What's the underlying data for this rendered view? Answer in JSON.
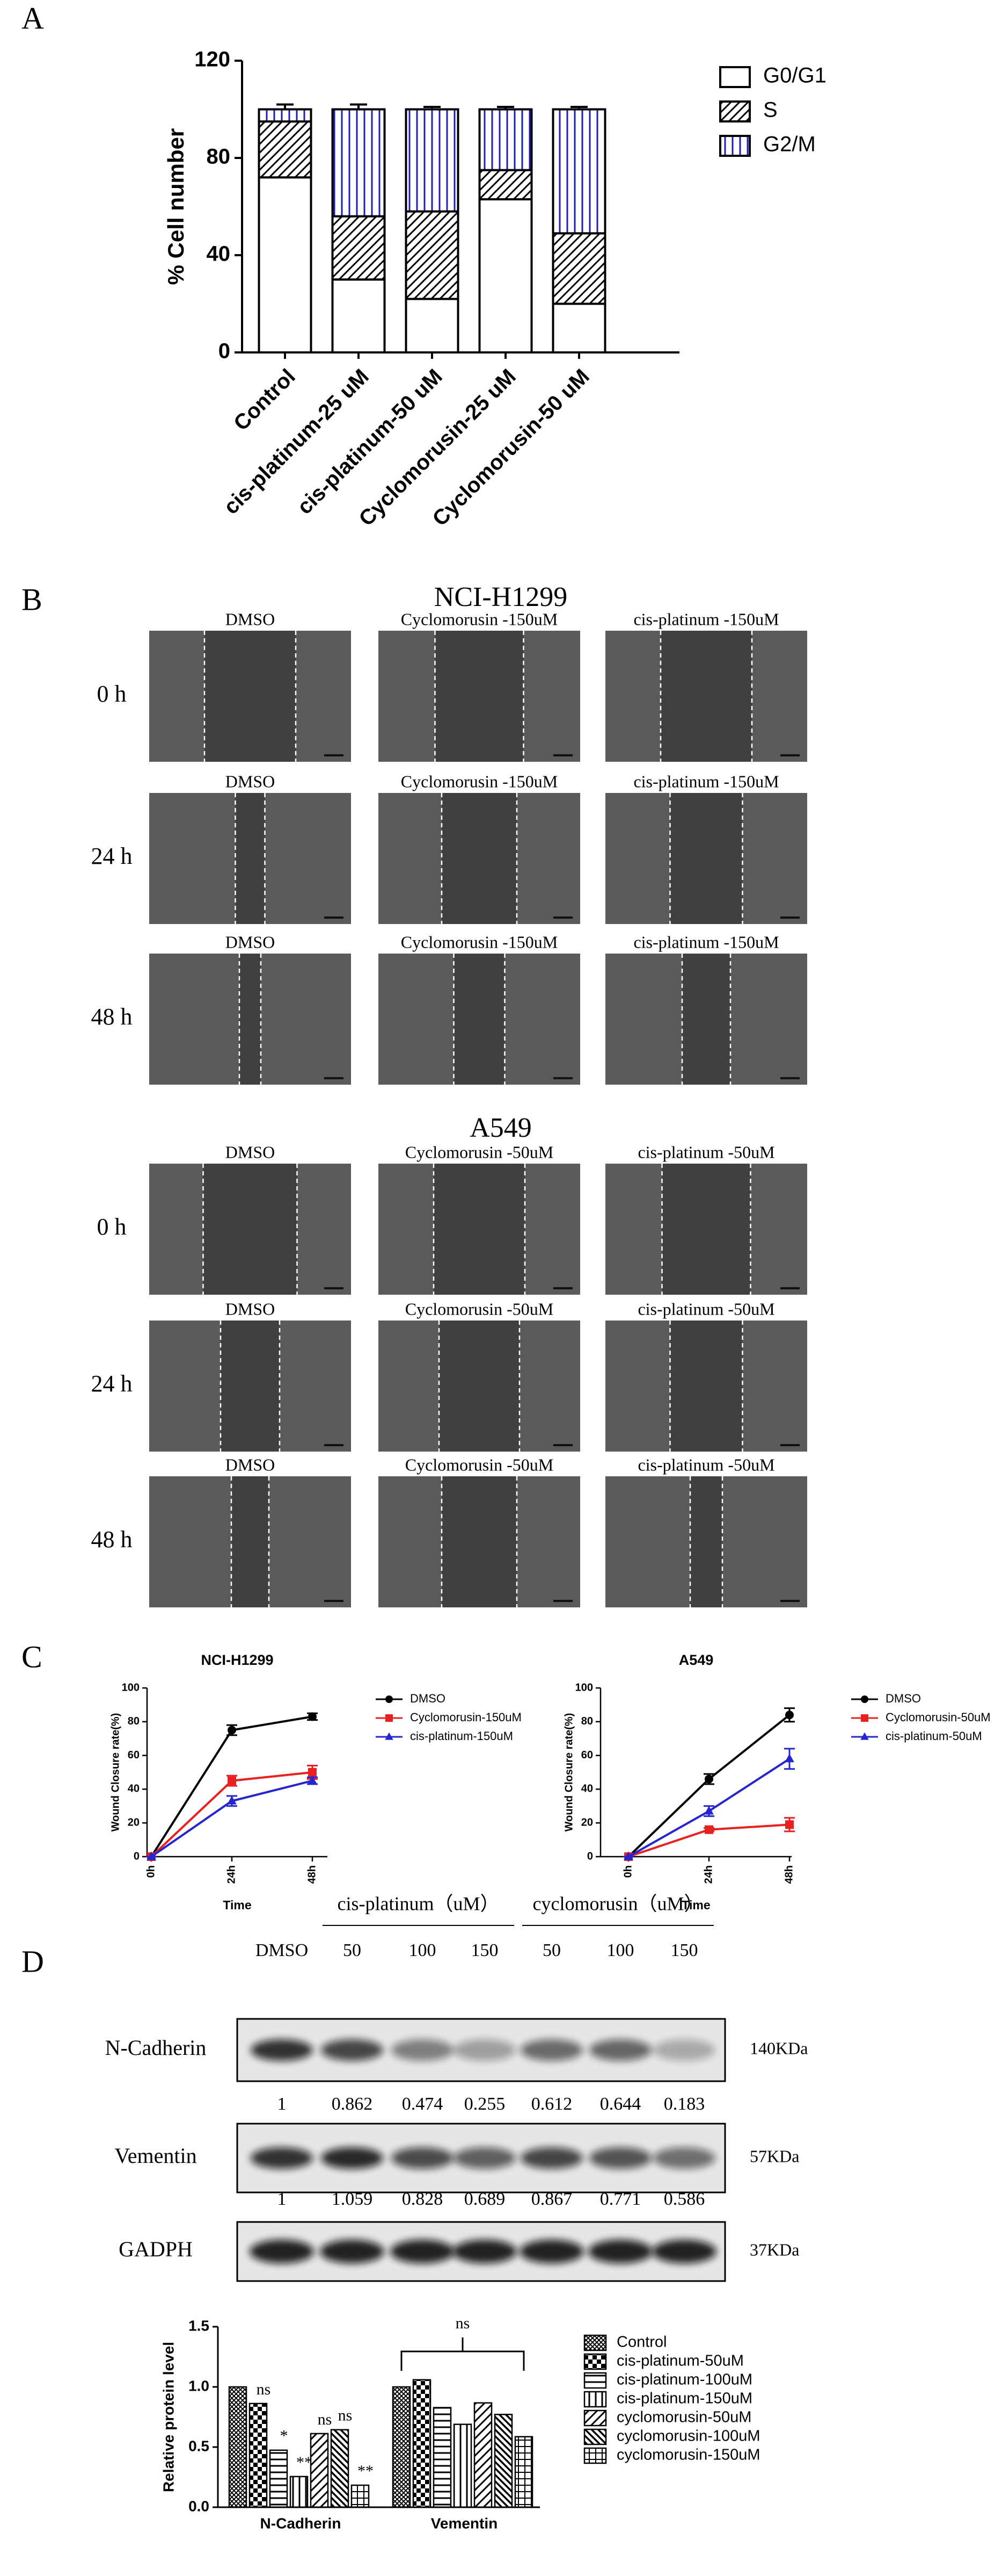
{
  "panel_labels": [
    "A",
    "B",
    "C",
    "D"
  ],
  "chart_data": [
    {
      "type": "stacked_bar",
      "ylabel": "% Cell number",
      "categories": [
        "Control",
        "cis-platinum-25 uM",
        "cis-platinum-50 uM",
        "Cyclomorusin-25 uM",
        "Cyclomorusin-50 uM"
      ],
      "series": [
        {
          "name": "G0/G1",
          "color": "#ffffff",
          "pattern": "none",
          "values": [
            72,
            30,
            22,
            63,
            20
          ],
          "errors": [
            2,
            1,
            1,
            1,
            1
          ]
        },
        {
          "name": "S",
          "color": "#000000",
          "pattern": "diagonal",
          "values": [
            23,
            26,
            36,
            12,
            29
          ],
          "errors": [
            2,
            1,
            2,
            3,
            1
          ]
        },
        {
          "name": "G2/M",
          "color": "#1f1fb4",
          "pattern": "vertical",
          "values": [
            5,
            44,
            42,
            25,
            51
          ],
          "errors": [
            2,
            2,
            1,
            1,
            1
          ]
        }
      ],
      "ylim": [
        0,
        120
      ],
      "yticks": [
        0,
        40,
        80,
        120
      ],
      "legend": "right"
    },
    {
      "type": "line",
      "title": "NCI-H1299",
      "xlabel": "Time",
      "ylabel": "Wound Closure rate(%)",
      "categories": [
        "0h",
        "24h",
        "48h"
      ],
      "series": [
        {
          "name": "DMSO",
          "color": "#000000",
          "marker": "circle",
          "values": [
            0,
            75,
            83
          ],
          "errors": [
            0,
            3,
            2
          ]
        },
        {
          "name": "Cyclomorusin-150uM",
          "color": "#e8201f",
          "marker": "square",
          "values": [
            0,
            45,
            50
          ],
          "errors": [
            0,
            3,
            4
          ]
        },
        {
          "name": "cis-platinum-150uM",
          "color": "#2424d0",
          "marker": "triangle",
          "values": [
            0,
            33,
            45
          ],
          "errors": [
            0,
            3,
            2
          ]
        }
      ],
      "ylim": [
        0,
        100
      ],
      "yticks": [
        0,
        20,
        40,
        60,
        80,
        100
      ],
      "legend": "right"
    },
    {
      "type": "line",
      "title": "A549",
      "xlabel": "Time",
      "ylabel": "Wound Closure rate(%)",
      "categories": [
        "0h",
        "24h",
        "48h"
      ],
      "series": [
        {
          "name": "DMSO",
          "color": "#000000",
          "marker": "circle",
          "values": [
            0,
            46,
            84
          ],
          "errors": [
            0,
            3,
            4
          ]
        },
        {
          "name": "Cyclomorusin-50uM",
          "color": "#e8201f",
          "marker": "square",
          "values": [
            0,
            16,
            19
          ],
          "errors": [
            0,
            1,
            4
          ]
        },
        {
          "name": "cis-platinum-50uM",
          "color": "#2424d0",
          "marker": "triangle",
          "values": [
            0,
            27,
            58
          ],
          "errors": [
            0,
            3,
            6
          ]
        }
      ],
      "ylim": [
        0,
        100
      ],
      "yticks": [
        0,
        20,
        40,
        60,
        80,
        100
      ],
      "legend": "right"
    },
    {
      "type": "grouped_bar",
      "ylabel": "Relative protein level",
      "categories": [
        "N-Cadherin",
        "Vementin"
      ],
      "series": [
        {
          "name": "Control",
          "color": "#000000",
          "pattern": "cross",
          "values": [
            1,
            1
          ]
        },
        {
          "name": "cis-platinum-50uM",
          "color": "#000000",
          "pattern": "checker",
          "values": [
            0.862,
            1.059
          ],
          "significance": [
            "ns",
            null
          ]
        },
        {
          "name": "cis-platinum-100uM",
          "color": "#000000",
          "pattern": "hlines",
          "values": [
            0.474,
            0.828
          ],
          "significance": [
            "*",
            null
          ]
        },
        {
          "name": "cis-platinum-150uM",
          "color": "#000000",
          "pattern": "vlines",
          "values": [
            0.255,
            0.689
          ],
          "significance": [
            "**",
            null
          ]
        },
        {
          "name": "cyclomorusin-50uM",
          "color": "#000000",
          "pattern": "diagonal",
          "values": [
            0.612,
            0.867
          ],
          "significance": [
            "ns",
            null
          ]
        },
        {
          "name": "cyclomorusin-100uM",
          "color": "#000000",
          "pattern": "diagonal2",
          "values": [
            0.644,
            0.771
          ],
          "significance": [
            "ns",
            null
          ]
        },
        {
          "name": "cyclomorusin-150uM",
          "color": "#000000",
          "pattern": "grid",
          "values": [
            0.183,
            0.586
          ],
          "significance": [
            "**",
            null
          ]
        }
      ],
      "ylim": [
        0,
        1.5
      ],
      "yticks": [
        {
          "value": 0,
          "label": "0.0"
        },
        0.5,
        {
          "value": 1,
          "label": "1.0"
        },
        1.5
      ],
      "bracket_label": "ns",
      "legend": "right"
    }
  ],
  "wound": {
    "groups": [
      {
        "title": "NCI-H1299",
        "columns": [
          "DMSO",
          "Cyclomorusin -150uM",
          "cis-platinum -150uM"
        ],
        "rows": [
          "0 h",
          "24 h",
          "48 h"
        ]
      },
      {
        "title": "A549",
        "columns": [
          "DMSO",
          "Cyclomorusin -50uM",
          "cis-platinum -50uM"
        ],
        "rows": [
          "0 h",
          "24 h",
          "48 h"
        ]
      }
    ]
  },
  "blot": {
    "control": "DMSO",
    "groups": [
      {
        "name": "cis-platinum（uM）",
        "doses": [
          "50",
          "100",
          "150"
        ]
      },
      {
        "name": "cyclomorusin（uM）",
        "doses": [
          "50",
          "100",
          "150"
        ]
      }
    ],
    "proteins": [
      {
        "name": "N-Cadherin",
        "size": "140KDa"
      },
      {
        "name": "Vementin",
        "size": "57KDa"
      },
      {
        "name": "GADPH",
        "size": "37KDa"
      }
    ]
  }
}
